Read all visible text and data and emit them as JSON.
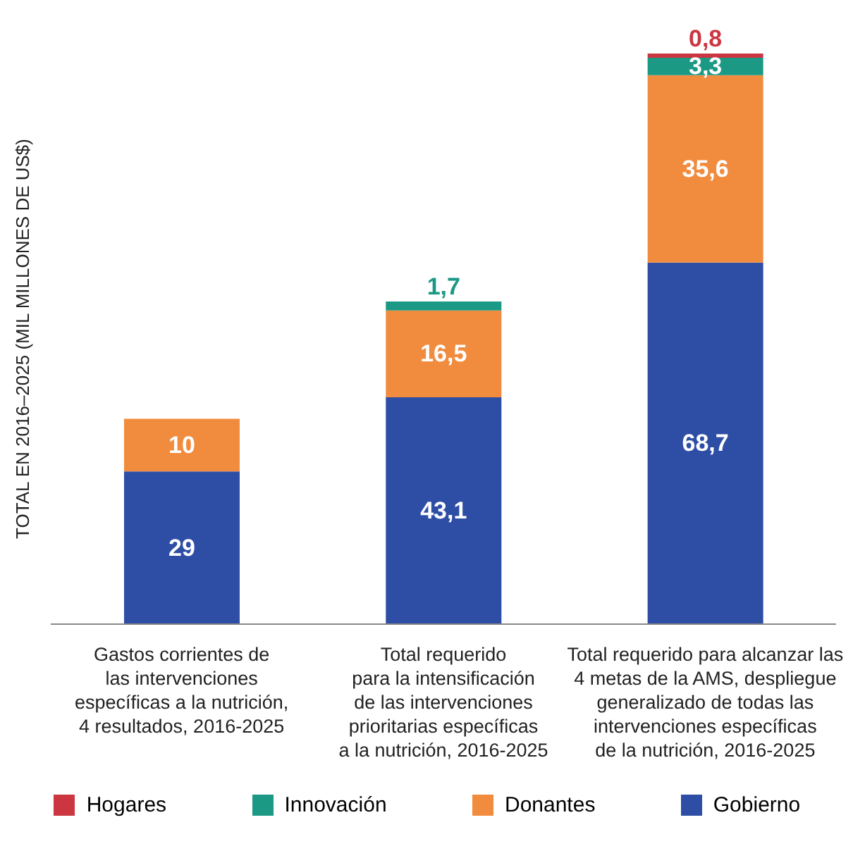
{
  "chart_data": {
    "type": "bar",
    "stacked": true,
    "ylabel": "TOTAL EN 2016–2025 (MIL MILLONES DE US$)",
    "categories": [
      "Gastos corrientes de\nlas intervenciones\nespecíficas a la nutrición,\n4 resultados, 2016-2025",
      "Total requerido\npara la intensificación\nde las intervenciones\nprioritarias específicas\na la nutrición, 2016-2025",
      "Total requerido para alcanzar las\n4 metas de la AMS, despliegue\ngeneralizado de todas las\nintervenciones específicas\nde la nutrición, 2016-2025"
    ],
    "series": [
      {
        "name": "Gobierno",
        "color": "#2e4ea6",
        "values": [
          29,
          43.1,
          68.7
        ],
        "value_labels": [
          "29",
          "43,1",
          "68,7"
        ]
      },
      {
        "name": "Donantes",
        "color": "#f18c3f",
        "values": [
          10,
          16.5,
          35.6
        ],
        "value_labels": [
          "10",
          "16,5",
          "35,6"
        ]
      },
      {
        "name": "Innovación",
        "color": "#1b9985",
        "values": [
          null,
          1.7,
          3.3
        ],
        "value_labels": [
          null,
          "1,7",
          "3,3"
        ]
      },
      {
        "name": "Hogares",
        "color": "#cc3641",
        "values": [
          null,
          null,
          0.8
        ],
        "value_labels": [
          null,
          null,
          "0,8"
        ]
      }
    ],
    "legend": "bottom"
  }
}
